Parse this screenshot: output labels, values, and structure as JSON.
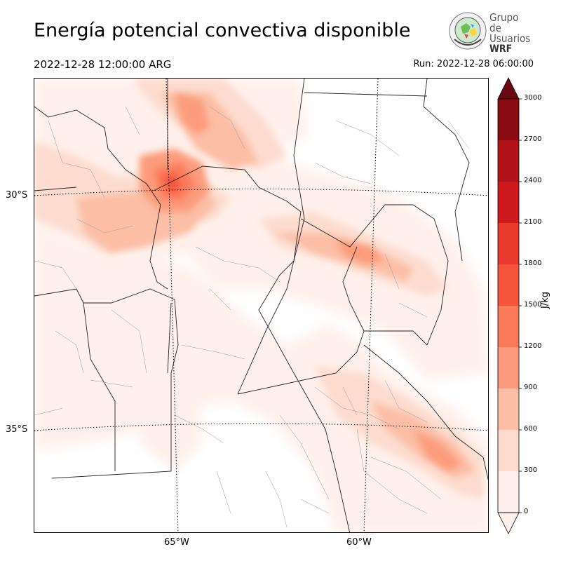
{
  "header": {
    "title": "Energía potencial convectiva disponible",
    "valid_time": "2022-12-28 12:00:00 ARG",
    "run_time": "Run: 2022-12-28 06:00:00"
  },
  "logo": {
    "line1": "Grupo de",
    "line2": "Usuarios",
    "line3": "WRF"
  },
  "map": {
    "lat_labels": [
      "30°S",
      "35°S"
    ],
    "lon_labels": [
      "65°W",
      "60°W"
    ]
  },
  "colorbar": {
    "unit": "J/kg",
    "ticks": [
      "0",
      "300",
      "600",
      "900",
      "1200",
      "1500",
      "1800",
      "2100",
      "2400",
      "2700",
      "3000"
    ],
    "colors": [
      "#fff0eb",
      "#fddccf",
      "#fcbea5",
      "#fc9b7c",
      "#fb7a5a",
      "#f6553c",
      "#e93a2e",
      "#ce1a1e",
      "#b01319",
      "#8a0b12"
    ],
    "extend_color": "#6b0710"
  }
}
